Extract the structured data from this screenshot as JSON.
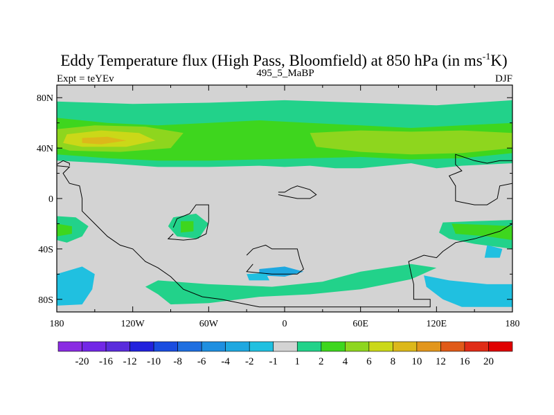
{
  "chart_data": {
    "type": "heatmap",
    "title": "Eddy Temperature flux (High Pass, Bloomfield) at 850 hPa (in ms",
    "title_exponent": "-1",
    "title_end": "K)",
    "left_label": "Expt = teYEv",
    "center_label": "495_5_MaBP",
    "right_label": "DJF",
    "xlim": [
      -180,
      180
    ],
    "ylim": [
      -90,
      90
    ],
    "x_ticks": [
      {
        "value": -180,
        "label": "180"
      },
      {
        "value": -120,
        "label": "120W"
      },
      {
        "value": -60,
        "label": "60W"
      },
      {
        "value": 0,
        "label": "0"
      },
      {
        "value": 60,
        "label": "60E"
      },
      {
        "value": 120,
        "label": "120E"
      },
      {
        "value": 180,
        "label": "180"
      }
    ],
    "y_ticks": [
      {
        "value": 80,
        "label": "80N"
      },
      {
        "value": 40,
        "label": "40N"
      },
      {
        "value": 0,
        "label": "0"
      },
      {
        "value": -40,
        "label": "40S"
      },
      {
        "value": -80,
        "label": "80S"
      }
    ],
    "colorbar": {
      "labels": [
        "-20",
        "-16",
        "-12",
        "-10",
        "-8",
        "-6",
        "-4",
        "-2",
        "-1",
        "1",
        "2",
        "4",
        "6",
        "8",
        "10",
        "12",
        "16",
        "20"
      ],
      "colors": [
        "#8a2be2",
        "#7227e6",
        "#5a2cdc",
        "#2222dd",
        "#1a4de0",
        "#1e6fe0",
        "#1e8fe0",
        "#1ea8e0",
        "#20c0e0",
        "#d3d3d3",
        "#22d28a",
        "#3ed61e",
        "#8ed61e",
        "#cbd818",
        "#dcb81a",
        "#e2961c",
        "#e05a18",
        "#e02c16",
        "#e00000"
      ]
    },
    "regions": [
      {
        "name": "nh-storm-track-outer",
        "color": "#22d28a",
        "points": [
          [
            -180,
            77
          ],
          [
            -120,
            75
          ],
          [
            -60,
            76
          ],
          [
            0,
            78
          ],
          [
            60,
            76
          ],
          [
            120,
            74
          ],
          [
            180,
            78
          ],
          [
            180,
            28
          ],
          [
            140,
            26
          ],
          [
            120,
            24
          ],
          [
            100,
            28
          ],
          [
            60,
            24
          ],
          [
            40,
            24
          ],
          [
            20,
            26
          ],
          [
            0,
            25
          ],
          [
            -20,
            26
          ],
          [
            -60,
            25
          ],
          [
            -100,
            25
          ],
          [
            -140,
            28
          ],
          [
            -180,
            30
          ]
        ]
      },
      {
        "name": "nh-storm-track-inner",
        "color": "#3ed61e",
        "points": [
          [
            -180,
            64
          ],
          [
            -140,
            60
          ],
          [
            -100,
            58
          ],
          [
            -60,
            60
          ],
          [
            -20,
            62
          ],
          [
            20,
            60
          ],
          [
            60,
            58
          ],
          [
            100,
            56
          ],
          [
            140,
            58
          ],
          [
            180,
            60
          ],
          [
            180,
            36
          ],
          [
            140,
            32
          ],
          [
            100,
            31
          ],
          [
            60,
            33
          ],
          [
            20,
            32
          ],
          [
            -20,
            31
          ],
          [
            -60,
            30
          ],
          [
            -100,
            30
          ],
          [
            -140,
            32
          ],
          [
            -180,
            35
          ]
        ]
      },
      {
        "name": "nh-atlantic-max",
        "color": "#8ed61e",
        "points": [
          [
            -180,
            55
          ],
          [
            -150,
            58
          ],
          [
            -110,
            57
          ],
          [
            -80,
            52
          ],
          [
            -90,
            40
          ],
          [
            -130,
            37
          ],
          [
            -170,
            38
          ],
          [
            -180,
            41
          ]
        ]
      },
      {
        "name": "nh-asia-max",
        "color": "#8ed61e",
        "points": [
          [
            20,
            52
          ],
          [
            60,
            54
          ],
          [
            100,
            53
          ],
          [
            140,
            54
          ],
          [
            180,
            52
          ],
          [
            180,
            40
          ],
          [
            140,
            36
          ],
          [
            100,
            35
          ],
          [
            60,
            37
          ],
          [
            25,
            41
          ]
        ]
      },
      {
        "name": "nh-core",
        "color": "#cbd818",
        "points": [
          [
            -172,
            51
          ],
          [
            -145,
            54
          ],
          [
            -115,
            52
          ],
          [
            -102,
            46
          ],
          [
            -125,
            41
          ],
          [
            -160,
            41
          ],
          [
            -175,
            44
          ]
        ]
      },
      {
        "name": "nh-core-max",
        "color": "#dcb81a",
        "points": [
          [
            -160,
            48
          ],
          [
            -140,
            49
          ],
          [
            -125,
            46
          ],
          [
            -145,
            43
          ],
          [
            -160,
            44
          ]
        ]
      },
      {
        "name": "sh-west-green",
        "color": "#22d28a",
        "points": [
          [
            -180,
            -14
          ],
          [
            -165,
            -15
          ],
          [
            -155,
            -22
          ],
          [
            -160,
            -30
          ],
          [
            -172,
            -35
          ],
          [
            -180,
            -33
          ]
        ]
      },
      {
        "name": "sh-west-core",
        "color": "#3ed61e",
        "points": [
          [
            -180,
            -20
          ],
          [
            -168,
            -22
          ],
          [
            -168,
            -28
          ],
          [
            -180,
            -30
          ]
        ]
      },
      {
        "name": "africa-blob",
        "color": "#22d28a",
        "points": [
          [
            -88,
            -15
          ],
          [
            -70,
            -12
          ],
          [
            -60,
            -20
          ],
          [
            -68,
            -32
          ],
          [
            -85,
            -30
          ],
          [
            -92,
            -22
          ]
        ]
      },
      {
        "name": "africa-core",
        "color": "#3ed61e",
        "points": [
          [
            -82,
            -18
          ],
          [
            -72,
            -18
          ],
          [
            -72,
            -26
          ],
          [
            -82,
            -27
          ]
        ]
      },
      {
        "name": "sh-east-green",
        "color": "#22d28a",
        "points": [
          [
            125,
            -19
          ],
          [
            150,
            -18
          ],
          [
            180,
            -17
          ],
          [
            180,
            -40
          ],
          [
            150,
            -36
          ],
          [
            130,
            -32
          ],
          [
            122,
            -27
          ]
        ]
      },
      {
        "name": "sh-east-core",
        "color": "#3ed61e",
        "points": [
          [
            132,
            -20
          ],
          [
            160,
            -21
          ],
          [
            180,
            -22
          ],
          [
            180,
            -33
          ],
          [
            160,
            -30
          ],
          [
            135,
            -28
          ]
        ]
      },
      {
        "name": "sh-ocean-band",
        "color": "#22d28a",
        "points": [
          [
            -100,
            -65
          ],
          [
            -60,
            -68
          ],
          [
            -10,
            -70
          ],
          [
            30,
            -66
          ],
          [
            60,
            -58
          ],
          [
            100,
            -52
          ],
          [
            120,
            -55
          ],
          [
            100,
            -64
          ],
          [
            60,
            -72
          ],
          [
            20,
            -76
          ],
          [
            -20,
            -78
          ],
          [
            -60,
            -83
          ],
          [
            -90,
            -84
          ],
          [
            -100,
            -76
          ],
          [
            -110,
            -70
          ]
        ]
      },
      {
        "name": "sh-west-blue",
        "color": "#20c0e0",
        "points": [
          [
            -180,
            -60
          ],
          [
            -160,
            -54
          ],
          [
            -150,
            -60
          ],
          [
            -152,
            -72
          ],
          [
            -160,
            -84
          ],
          [
            -180,
            -85
          ]
        ]
      },
      {
        "name": "sh-east-blue",
        "color": "#20c0e0",
        "points": [
          [
            110,
            -61
          ],
          [
            130,
            -65
          ],
          [
            160,
            -68
          ],
          [
            180,
            -68
          ],
          [
            180,
            -86
          ],
          [
            140,
            -86
          ],
          [
            125,
            -80
          ],
          [
            112,
            -70
          ]
        ]
      },
      {
        "name": "sh-east-blue-small",
        "color": "#20c0e0",
        "points": [
          [
            160,
            -37
          ],
          [
            172,
            -40
          ],
          [
            170,
            -47
          ],
          [
            158,
            -47
          ]
        ]
      },
      {
        "name": "indian-blue",
        "color": "#1ea8e0",
        "points": [
          [
            -20,
            -56
          ],
          [
            0,
            -54
          ],
          [
            15,
            -58
          ],
          [
            0,
            -62
          ],
          [
            -20,
            -61
          ]
        ]
      },
      {
        "name": "mid-ocean-small",
        "color": "#20c0e0",
        "points": [
          [
            -30,
            -60
          ],
          [
            -15,
            -59
          ],
          [
            -12,
            -65
          ],
          [
            -28,
            -65
          ]
        ]
      }
    ],
    "continents": [
      [
        [
          -180,
          26
        ],
        [
          -170,
          25
        ],
        [
          -175,
          20
        ],
        [
          -170,
          12
        ],
        [
          -162,
          10
        ],
        [
          -160,
          0
        ],
        [
          -160,
          -10
        ],
        [
          -150,
          -20
        ],
        [
          -140,
          -30
        ],
        [
          -130,
          -37
        ],
        [
          -120,
          -40
        ],
        [
          -110,
          -50
        ],
        [
          -100,
          -55
        ],
        [
          -90,
          -62
        ],
        [
          -80,
          -72
        ],
        [
          -65,
          -78
        ],
        [
          -50,
          -80
        ],
        [
          -30,
          -84
        ],
        [
          -20,
          -86
        ],
        [
          10,
          -86
        ],
        [
          50,
          -86
        ],
        [
          90,
          -86
        ],
        [
          115,
          -86
        ],
        [
          115,
          -80
        ],
        [
          102,
          -80
        ],
        [
          102,
          -68
        ],
        [
          100,
          -60
        ],
        [
          98,
          -50
        ],
        [
          110,
          -45
        ],
        [
          120,
          -47
        ],
        [
          125,
          -42
        ],
        [
          135,
          -35
        ],
        [
          150,
          -32
        ],
        [
          170,
          -26
        ],
        [
          180,
          -20
        ]
      ],
      [
        [
          180,
          12
        ],
        [
          170,
          10
        ],
        [
          168,
          0
        ],
        [
          160,
          -5
        ],
        [
          150,
          -5
        ],
        [
          140,
          -3
        ],
        [
          135,
          -2
        ],
        [
          135,
          10
        ],
        [
          130,
          18
        ],
        [
          135,
          20
        ],
        [
          140,
          22
        ],
        [
          135,
          27
        ],
        [
          135,
          35
        ],
        [
          150,
          30
        ],
        [
          160,
          28
        ],
        [
          170,
          30
        ],
        [
          180,
          30
        ]
      ],
      [
        [
          -88,
          -23
        ],
        [
          -85,
          -16
        ],
        [
          -75,
          -12
        ],
        [
          -70,
          -5
        ],
        [
          -60,
          -5
        ],
        [
          -60,
          -18
        ],
        [
          -62,
          -28
        ],
        [
          -70,
          -32
        ],
        [
          -80,
          -33
        ],
        [
          -92,
          -32
        ],
        [
          -88,
          -28
        ]
      ],
      [
        [
          -5,
          5
        ],
        [
          0,
          5
        ],
        [
          5,
          8
        ],
        [
          10,
          10
        ],
        [
          20,
          7
        ],
        [
          25,
          3
        ],
        [
          20,
          0
        ],
        [
          10,
          0
        ],
        [
          -5,
          3
        ]
      ],
      [
        [
          -30,
          -45
        ],
        [
          -25,
          -40
        ],
        [
          -15,
          -37
        ],
        [
          -10,
          -40
        ],
        [
          10,
          -40
        ],
        [
          12,
          -48
        ],
        [
          15,
          -56
        ],
        [
          10,
          -60
        ],
        [
          -10,
          -60
        ],
        [
          -30,
          -58
        ],
        [
          -25,
          -52
        ]
      ],
      [
        [
          -180,
          27
        ],
        [
          -175,
          30
        ],
        [
          -170,
          28
        ],
        [
          -170,
          26
        ]
      ]
    ]
  }
}
